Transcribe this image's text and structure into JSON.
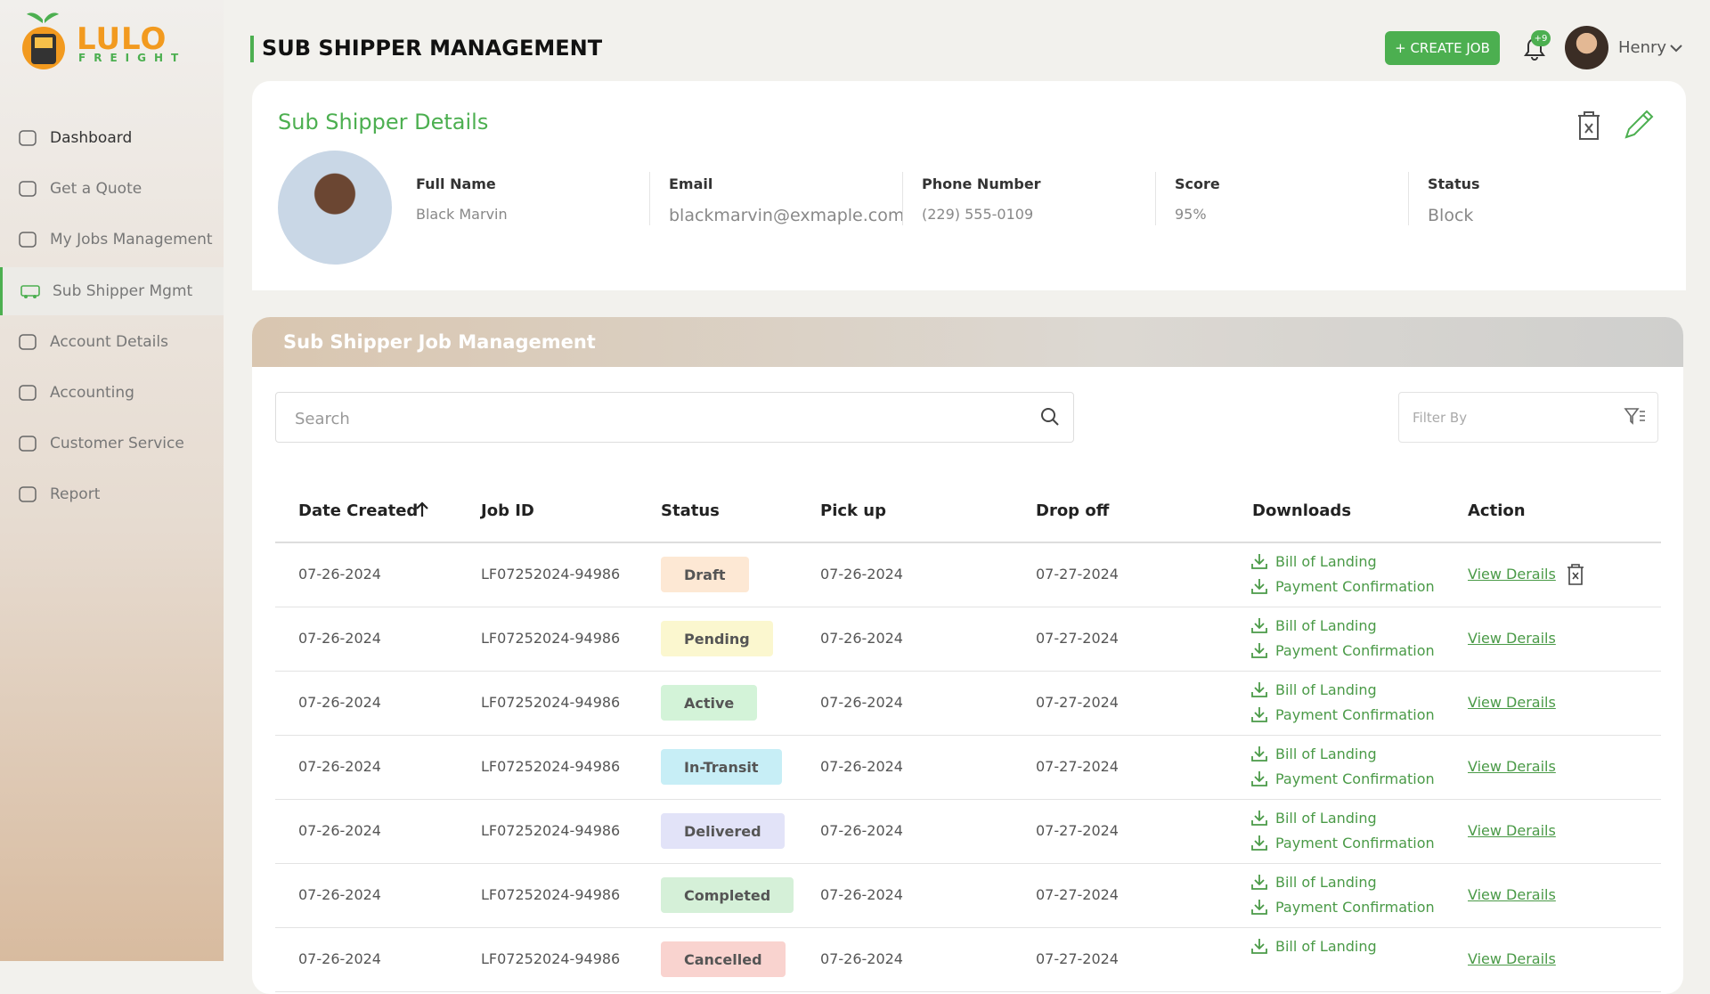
{
  "brand": {
    "name": "LULO",
    "tagline": "FREIGHT"
  },
  "nav": [
    "Dashboard",
    "Get a Quote",
    "My Jobs Management",
    "Sub Shipper Mgmt",
    "Account Details",
    "Accounting",
    "Customer Service",
    "Report"
  ],
  "header": {
    "title": "SUB SHIPPER MANAGEMENT",
    "create_button": "+ CREATE JOB",
    "notifications": "+9",
    "user": "Henry"
  },
  "details": {
    "title": "Sub Shipper Details",
    "fields": [
      {
        "label": "Full Name",
        "value": "Black Marvin"
      },
      {
        "label": "Email",
        "value": "blackmarvin@exmaple.com"
      },
      {
        "label": "Phone Number",
        "value": "(229) 555-0109"
      },
      {
        "label": "Score",
        "value": "95%"
      },
      {
        "label": "Status",
        "value": "Block"
      }
    ]
  },
  "jobs": {
    "title": "Sub Shipper Job Management",
    "search_placeholder": "Search",
    "filter_placeholder": "Filter By"
  },
  "table": {
    "columns": [
      "Date Created",
      "Job ID",
      "Status",
      "Pick up",
      "Drop off",
      "Downloads",
      "Action"
    ],
    "rows": [
      {
        "date": "07-26-2024",
        "job_id": "LF07252024-94986",
        "status": "Draft",
        "pick_up": "07-26-2024",
        "drop_off": "07-27-2024",
        "downloads": [
          "Bill of Landing",
          "Payment Confirmation"
        ],
        "action": "View Derails"
      },
      {
        "date": "07-26-2024",
        "job_id": "LF07252024-94986",
        "status": "Pending",
        "pick_up": "07-26-2024",
        "drop_off": "07-27-2024",
        "downloads": [
          "Bill of Landing",
          "Payment Confirmation"
        ],
        "action": "View Derails"
      },
      {
        "date": "07-26-2024",
        "job_id": "LF07252024-94986",
        "status": "Active",
        "pick_up": "07-26-2024",
        "drop_off": "07-27-2024",
        "downloads": [
          "Bill of Landing",
          "Payment Confirmation"
        ],
        "action": "View Derails"
      },
      {
        "date": "07-26-2024",
        "job_id": "LF07252024-94986",
        "status": "In-Transit",
        "pick_up": "07-26-2024",
        "drop_off": "07-27-2024",
        "downloads": [
          "Bill of Landing",
          "Payment Confirmation"
        ],
        "action": "View Derails"
      },
      {
        "date": "07-26-2024",
        "job_id": "LF07252024-94986",
        "status": "Delivered",
        "pick_up": "07-26-2024",
        "drop_off": "07-27-2024",
        "downloads": [
          "Bill of Landing",
          "Payment Confirmation"
        ],
        "action": "View Derails"
      },
      {
        "date": "07-26-2024",
        "job_id": "LF07252024-94986",
        "status": "Completed",
        "pick_up": "07-26-2024",
        "drop_off": "07-27-2024",
        "downloads": [
          "Bill of Landing",
          "Payment Confirmation"
        ],
        "action": "View Derails"
      },
      {
        "date": "07-26-2024",
        "job_id": "LF07252024-94986",
        "status": "Cancelled",
        "pick_up": "07-26-2024",
        "drop_off": "07-27-2024",
        "downloads": [
          "Bill of Landing"
        ],
        "action": "View Derails"
      }
    ]
  }
}
